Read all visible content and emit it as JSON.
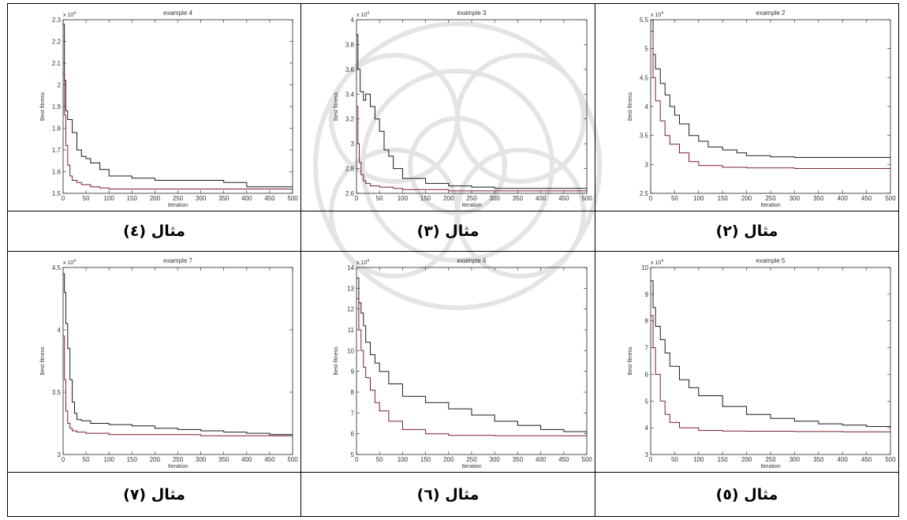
{
  "charts": [
    {
      "title": "example 4",
      "caption": "مثال (٤)",
      "xlabel": "Iteration",
      "ylabel": "Best fitness",
      "exponent": "x 10",
      "exp_power": "4",
      "ylim": [
        1.5,
        2.3
      ],
      "yticks": [
        1.5,
        1.6,
        1.7,
        1.8,
        1.9,
        2,
        2.1,
        2.2,
        2.3
      ],
      "ytick_labels": [
        "1.5",
        "1.6",
        "1.7",
        "1.8",
        "1.9",
        "2",
        "2.1",
        "2.2",
        "2.3"
      ]
    },
    {
      "title": "example 3",
      "caption": "مثال (٣)",
      "xlabel": "Iteration",
      "ylabel": "Best fitness",
      "exponent": "x 10",
      "exp_power": "4",
      "ylim": [
        2.6,
        4.0
      ],
      "yticks": [
        2.6,
        2.8,
        3,
        3.2,
        3.4,
        3.6,
        3.8,
        4
      ],
      "ytick_labels": [
        "2.6",
        "2.8",
        "3",
        "3.2",
        "3.4",
        "3.6",
        "3.8",
        "4"
      ]
    },
    {
      "title": "example 2",
      "caption": "مثال (٢)",
      "xlabel": "Iteration",
      "ylabel": "Best fitness",
      "exponent": "x 10",
      "exp_power": "4",
      "ylim": [
        2.5,
        5.5
      ],
      "yticks": [
        2.5,
        3,
        3.5,
        4,
        4.5,
        5,
        5.5
      ],
      "ytick_labels": [
        "2.5",
        "3",
        "3.5",
        "4",
        "4.5",
        "5",
        "5.5"
      ]
    },
    {
      "title": "example 7",
      "caption": "مثال (٧)",
      "xlabel": "Iteration",
      "ylabel": "Best fitness",
      "exponent": "x 10",
      "exp_power": "4",
      "ylim": [
        3.0,
        4.5
      ],
      "yticks": [
        3,
        3.5,
        4,
        4.5
      ],
      "ytick_labels": [
        "3",
        "3.5",
        "4",
        "4.5"
      ]
    },
    {
      "title": "example 6",
      "caption": "مثال (٦)",
      "xlabel": "Iteration",
      "ylabel": "Best fitness",
      "exponent": "x 10",
      "exp_power": "4",
      "ylim": [
        5,
        14
      ],
      "yticks": [
        5,
        6,
        7,
        8,
        9,
        10,
        11,
        12,
        13,
        14
      ],
      "ytick_labels": [
        "5",
        "6",
        "7",
        "8",
        "9",
        "10",
        "11",
        "12",
        "13",
        "14"
      ]
    },
    {
      "title": "example 5",
      "caption": "مثال (٥)",
      "xlabel": "Iteration",
      "ylabel": "Best fitness",
      "exponent": "x 10",
      "exp_power": "4",
      "ylim": [
        3,
        10
      ],
      "yticks": [
        3,
        4,
        5,
        6,
        7,
        8,
        9,
        10
      ],
      "ytick_labels": [
        "3",
        "4",
        "5",
        "6",
        "7",
        "8",
        "9",
        "10"
      ]
    }
  ],
  "chart_data": [
    {
      "type": "line",
      "title": "example 4",
      "xlabel": "Iteration",
      "ylabel": "Best fitness",
      "xlim": [
        0,
        500
      ],
      "ylim": [
        1.5,
        2.3
      ],
      "x_ticks": [
        0,
        50,
        100,
        150,
        200,
        250,
        300,
        350,
        400,
        450,
        500
      ],
      "series": [
        {
          "color": "#1a1a1a",
          "x": [
            0,
            3,
            6,
            10,
            20,
            30,
            40,
            50,
            60,
            80,
            100,
            150,
            200,
            300,
            350,
            400,
            450,
            500
          ],
          "y": [
            2.28,
            2.02,
            1.88,
            1.84,
            1.78,
            1.7,
            1.67,
            1.66,
            1.64,
            1.61,
            1.58,
            1.57,
            1.56,
            1.56,
            1.55,
            1.53,
            1.53,
            1.53
          ]
        },
        {
          "color": "#7a1f2b",
          "x": [
            0,
            3,
            6,
            10,
            15,
            20,
            30,
            40,
            60,
            80,
            100,
            200,
            300,
            400,
            500
          ],
          "y": [
            2.05,
            1.86,
            1.72,
            1.63,
            1.58,
            1.56,
            1.55,
            1.54,
            1.53,
            1.525,
            1.52,
            1.52,
            1.52,
            1.52,
            1.52
          ]
        }
      ]
    },
    {
      "type": "line",
      "title": "example 3",
      "xlabel": "Iteration",
      "ylabel": "Best fitness",
      "xlim": [
        0,
        500
      ],
      "ylim": [
        2.6,
        4.0
      ],
      "x_ticks": [
        0,
        50,
        100,
        150,
        200,
        250,
        300,
        350,
        400,
        450,
        500
      ],
      "series": [
        {
          "color": "#1a1a1a",
          "x": [
            0,
            3,
            8,
            15,
            20,
            30,
            40,
            50,
            60,
            70,
            80,
            100,
            150,
            200,
            250,
            300,
            400,
            500
          ],
          "y": [
            3.88,
            3.6,
            3.42,
            3.35,
            3.4,
            3.3,
            3.2,
            3.1,
            2.95,
            2.9,
            2.8,
            2.72,
            2.68,
            2.66,
            2.65,
            2.64,
            2.64,
            2.64
          ]
        },
        {
          "color": "#7a1f2b",
          "x": [
            0,
            3,
            6,
            10,
            15,
            20,
            30,
            50,
            80,
            100,
            150,
            200,
            300,
            500
          ],
          "y": [
            3.3,
            3.0,
            2.85,
            2.75,
            2.7,
            2.68,
            2.66,
            2.65,
            2.64,
            2.63,
            2.63,
            2.62,
            2.62,
            2.62
          ]
        }
      ]
    },
    {
      "type": "line",
      "title": "example 2",
      "xlabel": "Iteration",
      "ylabel": "Best fitness",
      "xlim": [
        0,
        500
      ],
      "ylim": [
        2.5,
        5.5
      ],
      "x_ticks": [
        0,
        50,
        100,
        150,
        200,
        250,
        300,
        350,
        400,
        450,
        500
      ],
      "series": [
        {
          "color": "#1a1a1a",
          "x": [
            0,
            5,
            10,
            20,
            30,
            40,
            50,
            60,
            80,
            100,
            120,
            150,
            180,
            200,
            250,
            300,
            400,
            500
          ],
          "y": [
            5.5,
            4.9,
            4.65,
            4.4,
            4.2,
            4.0,
            3.85,
            3.7,
            3.5,
            3.4,
            3.3,
            3.25,
            3.2,
            3.15,
            3.13,
            3.12,
            3.12,
            3.12
          ]
        },
        {
          "color": "#7a1f2b",
          "x": [
            0,
            5,
            10,
            20,
            30,
            40,
            60,
            80,
            100,
            150,
            200,
            300,
            400,
            500
          ],
          "y": [
            5.3,
            4.5,
            4.1,
            3.75,
            3.5,
            3.35,
            3.2,
            3.05,
            2.98,
            2.95,
            2.94,
            2.93,
            2.93,
            2.93
          ]
        }
      ]
    },
    {
      "type": "line",
      "title": "example 7",
      "xlabel": "Iteration",
      "ylabel": "Best fitness",
      "xlim": [
        0,
        500
      ],
      "ylim": [
        3.0,
        4.5
      ],
      "x_ticks": [
        0,
        50,
        100,
        150,
        200,
        250,
        300,
        350,
        400,
        450,
        500
      ],
      "series": [
        {
          "color": "#1a1a1a",
          "x": [
            0,
            3,
            6,
            10,
            15,
            20,
            25,
            30,
            40,
            60,
            100,
            150,
            200,
            250,
            300,
            350,
            400,
            450,
            500
          ],
          "y": [
            4.45,
            4.3,
            4.05,
            3.85,
            3.6,
            3.42,
            3.33,
            3.28,
            3.27,
            3.25,
            3.24,
            3.23,
            3.21,
            3.2,
            3.19,
            3.18,
            3.17,
            3.16,
            3.16
          ]
        },
        {
          "color": "#7a1f2b",
          "x": [
            0,
            3,
            6,
            10,
            15,
            20,
            30,
            50,
            100,
            200,
            300,
            400,
            500
          ],
          "y": [
            3.95,
            3.6,
            3.35,
            3.25,
            3.21,
            3.19,
            3.18,
            3.17,
            3.16,
            3.16,
            3.15,
            3.15,
            3.15
          ]
        }
      ]
    },
    {
      "type": "line",
      "title": "example 6",
      "xlabel": "Iteration",
      "ylabel": "Best fitness",
      "xlim": [
        0,
        500
      ],
      "ylim": [
        5,
        14
      ],
      "x_ticks": [
        0,
        50,
        100,
        150,
        200,
        250,
        300,
        350,
        400,
        450,
        500
      ],
      "series": [
        {
          "color": "#1a1a1a",
          "x": [
            0,
            5,
            10,
            15,
            20,
            30,
            40,
            50,
            70,
            100,
            150,
            200,
            250,
            300,
            350,
            400,
            450,
            500
          ],
          "y": [
            13.5,
            12.3,
            11.8,
            11.2,
            10.4,
            9.8,
            9.4,
            9.0,
            8.4,
            7.8,
            7.5,
            7.2,
            6.9,
            6.6,
            6.4,
            6.2,
            6.1,
            6.0
          ]
        },
        {
          "color": "#7a1f2b",
          "x": [
            0,
            5,
            10,
            15,
            20,
            30,
            40,
            50,
            70,
            100,
            150,
            200,
            300,
            400,
            500
          ],
          "y": [
            12.5,
            11.0,
            10.0,
            9.2,
            8.7,
            8.1,
            7.5,
            7.1,
            6.6,
            6.2,
            6.0,
            5.92,
            5.9,
            5.9,
            5.9
          ]
        }
      ]
    },
    {
      "type": "line",
      "title": "example 5",
      "xlabel": "Iteration",
      "ylabel": "Best fitness",
      "xlim": [
        0,
        500
      ],
      "ylim": [
        3,
        10
      ],
      "x_ticks": [
        0,
        50,
        100,
        150,
        200,
        250,
        300,
        350,
        400,
        450,
        500
      ],
      "series": [
        {
          "color": "#1a1a1a",
          "x": [
            0,
            5,
            10,
            20,
            30,
            40,
            60,
            80,
            100,
            150,
            200,
            250,
            300,
            350,
            400,
            450,
            500
          ],
          "y": [
            9.5,
            8.5,
            7.8,
            7.3,
            6.8,
            6.3,
            5.8,
            5.5,
            5.2,
            4.8,
            4.5,
            4.35,
            4.25,
            4.15,
            4.1,
            4.05,
            4.0
          ]
        },
        {
          "color": "#7a1f2b",
          "x": [
            0,
            5,
            10,
            20,
            30,
            40,
            60,
            100,
            150,
            200,
            300,
            400,
            500
          ],
          "y": [
            8.2,
            7.0,
            6.0,
            5.0,
            4.5,
            4.2,
            4.0,
            3.9,
            3.88,
            3.87,
            3.86,
            3.85,
            3.85
          ]
        }
      ]
    }
  ]
}
